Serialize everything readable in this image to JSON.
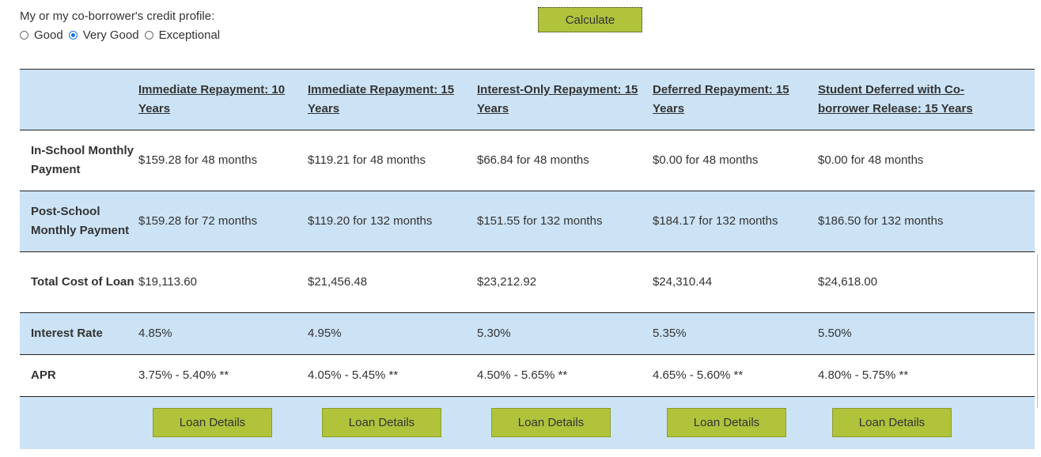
{
  "profile": {
    "label": "My or my co-borrower's credit profile:",
    "options": [
      {
        "label": "Good",
        "selected": false
      },
      {
        "label": "Very Good",
        "selected": true
      },
      {
        "label": "Exceptional",
        "selected": false
      }
    ]
  },
  "calculate_label": "Calculate",
  "table": {
    "plans": [
      "Immediate Repayment: 10 Years",
      "Immediate Repayment: 15 Years",
      "Interest-Only Repayment: 15 Years",
      "Deferred Repayment: 15 Years",
      "Student Deferred with Co-borrower Release: 15 Years"
    ],
    "rows": {
      "in_school": {
        "label": "In-School Monthly Payment",
        "values": [
          "$159.28 for 48 months",
          "$119.21 for 48 months",
          "$66.84 for 48 months",
          "$0.00 for 48 months",
          "$0.00 for 48 months"
        ]
      },
      "post_school": {
        "label": "Post-School Monthly Payment",
        "values": [
          "$159.28 for 72 months",
          "$119.20 for 132 months",
          "$151.55 for 132 months",
          "$184.17 for 132 months",
          "$186.50 for 132 months"
        ]
      },
      "total_cost": {
        "label": "Total Cost of Loan",
        "values": [
          "$19,113.60",
          "$21,456.48",
          "$23,212.92",
          "$24,310.44",
          "$24,618.00"
        ]
      },
      "interest_rate": {
        "label": "Interest Rate",
        "values": [
          "4.85%",
          "4.95%",
          "5.30%",
          "5.35%",
          "5.50%"
        ]
      },
      "apr": {
        "label": "APR",
        "values": [
          "3.75% - 5.40% **",
          "4.05% - 5.45% **",
          "4.50% - 5.65% **",
          "4.65% - 5.60% **",
          "4.80% - 5.75% **"
        ]
      }
    },
    "details_label": "Loan Details"
  },
  "colors": {
    "accent_green": "#b0c33b",
    "row_shade": "#cce3f5",
    "radio_selected": "#1a73e8"
  }
}
